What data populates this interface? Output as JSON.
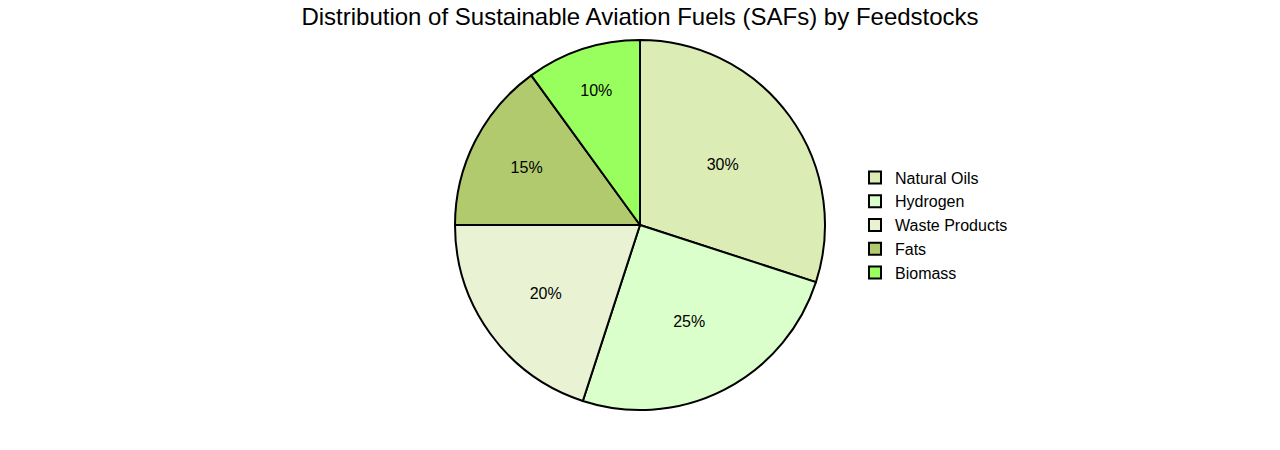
{
  "chart_data": {
    "type": "pie",
    "title": "Distribution of Sustainable Aviation Fuels (SAFs) by Feedstocks",
    "categories": [
      "Natural Oils",
      "Hydrogen",
      "Waste Products",
      "Fats",
      "Biomass"
    ],
    "values": [
      30,
      25,
      20,
      15,
      10
    ],
    "value_labels": [
      "30%",
      "25%",
      "20%",
      "15%",
      "10%"
    ],
    "colors": [
      "#dcecb5",
      "#daffca",
      "#e9f3d4",
      "#b1ca6e",
      "#99ff5f"
    ],
    "data_labels": true,
    "legend": "right"
  }
}
